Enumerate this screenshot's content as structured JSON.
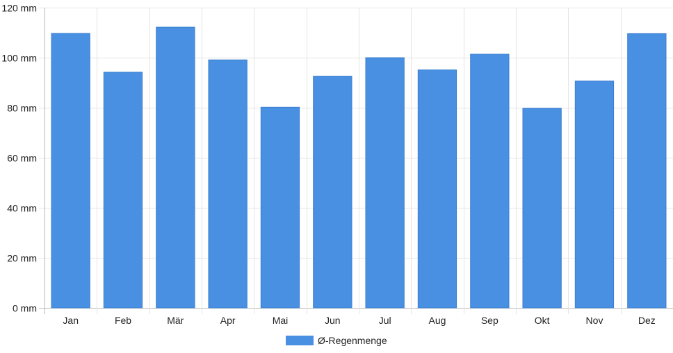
{
  "chart_data": {
    "type": "bar",
    "categories": [
      "Jan",
      "Feb",
      "Mär",
      "Apr",
      "Mai",
      "Jun",
      "Jul",
      "Aug",
      "Sep",
      "Okt",
      "Nov",
      "Dez"
    ],
    "series": [
      {
        "name": "Ø-Regenmenge",
        "values": [
          109.7,
          94.2,
          112.2,
          99.1,
          80.2,
          92.6,
          100.0,
          95.1,
          101.4,
          79.8,
          90.7,
          109.6
        ],
        "color": "#4a90e2"
      }
    ],
    "y_ticks": [
      "0 mm",
      "20 mm",
      "40 mm",
      "60 mm",
      "80 mm",
      "100 mm",
      "120 mm"
    ],
    "ylim": [
      0,
      120
    ],
    "grid": true,
    "legend_position": "bottom-center",
    "title": "",
    "xlabel": "",
    "ylabel": ""
  }
}
